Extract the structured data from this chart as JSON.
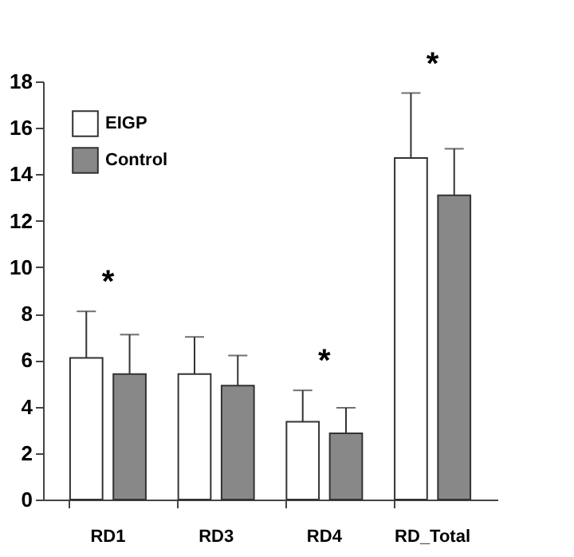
{
  "chart_data": {
    "type": "bar",
    "categories": [
      "RD1",
      "RD3",
      "RD4",
      "RD_Total"
    ],
    "series": [
      {
        "name": "EIGP",
        "color": "#ffffff",
        "values": [
          6.1,
          5.4,
          3.35,
          14.7
        ],
        "errors": [
          [
            6.1,
            8.1
          ],
          [
            5.4,
            7.0
          ],
          [
            3.35,
            4.7
          ],
          [
            14.7,
            17.5
          ]
        ]
      },
      {
        "name": "Control",
        "color": "#888888",
        "values": [
          5.4,
          4.9,
          2.85,
          13.1
        ],
        "errors": [
          [
            5.4,
            7.1
          ],
          [
            4.9,
            6.2
          ],
          [
            2.85,
            3.95
          ],
          [
            13.1,
            15.1
          ]
        ]
      }
    ],
    "ylim": [
      0,
      18
    ],
    "yticks": [
      0,
      2,
      4,
      6,
      8,
      10,
      12,
      14,
      16,
      18
    ],
    "grid": false,
    "legend": "top left",
    "annotations": [
      "*",
      "*",
      "*"
    ]
  }
}
